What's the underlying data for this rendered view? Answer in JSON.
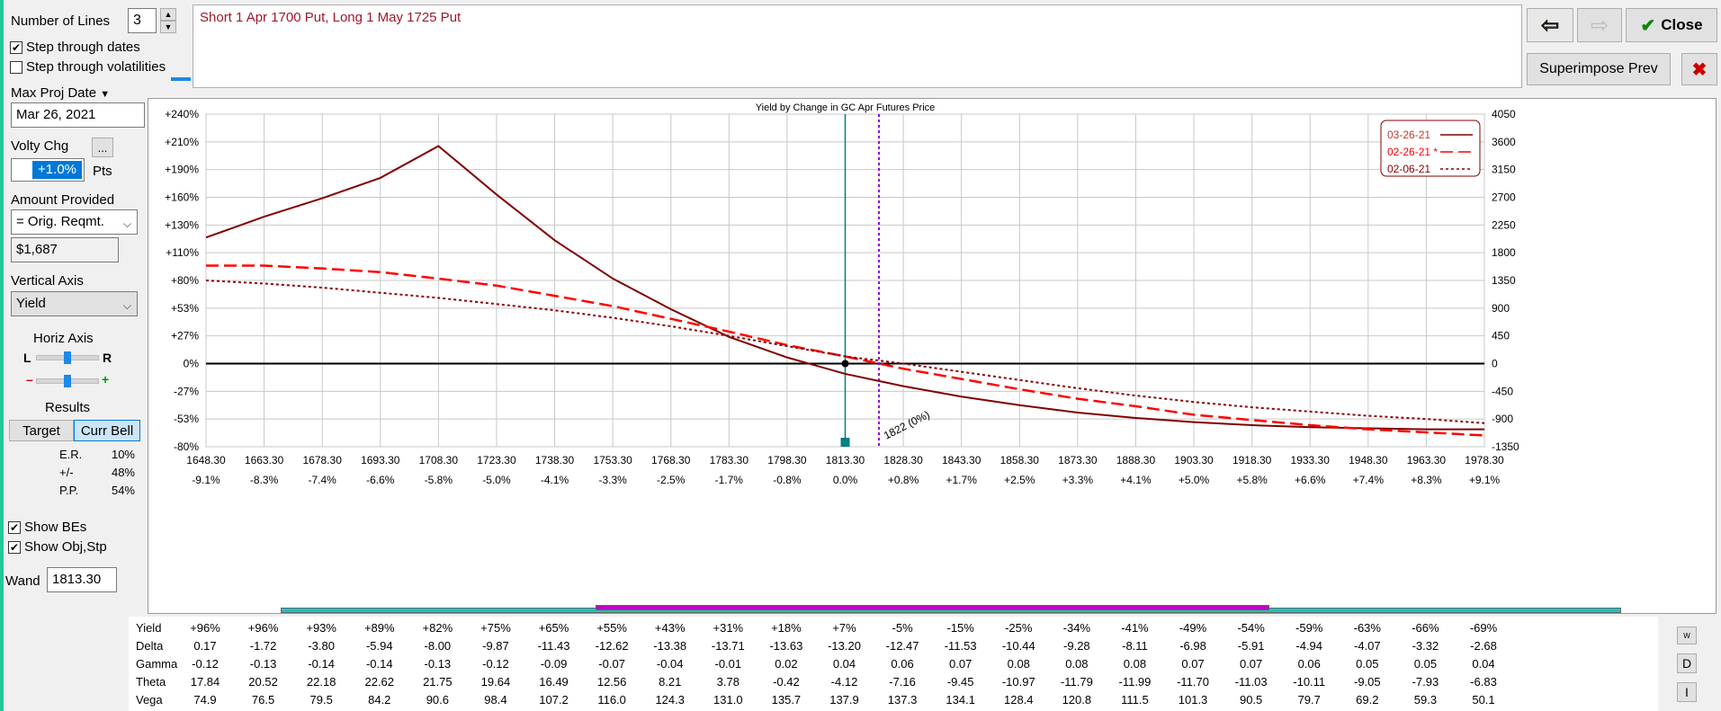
{
  "left_panel": {
    "number_of_lines_label": "Number of Lines",
    "number_of_lines_value": "3",
    "step_dates_label": "Step through dates",
    "step_dates_checked": true,
    "step_vols_label": "Step through volatilities",
    "step_vols_checked": false,
    "max_proj_date_label": "Max Proj Date",
    "max_proj_date_value": "Mar 26, 2021",
    "volty_chg_label": "Volty Chg",
    "volty_more": "...",
    "volty_value": "+1.0%",
    "volty_unit": "Pts",
    "amount_label": "Amount Provided",
    "amount_select": "= Orig. Reqmt.",
    "amount_value": "$1,687",
    "vertical_axis_label": "Vertical Axis",
    "vertical_axis_select": "Yield",
    "horiz_axis_label": "Horiz Axis",
    "horiz_l": "L",
    "horiz_r": "R",
    "horiz_minus": "–",
    "horiz_plus": "+",
    "results_label": "Results",
    "target_btn": "Target",
    "curr_bell_btn": "Curr Bell",
    "er_label": "E.R.",
    "er_value": "10%",
    "pm_label": "+/-",
    "pm_value": "48%",
    "pp_label": "P.P.",
    "pp_value": "54%",
    "show_bes_label": "Show BEs",
    "show_objstp_label": "Show Obj,Stp",
    "wand_label": "Wand",
    "wand_value": "1813.30"
  },
  "description": "Short 1 Apr 1700 Put, Long 1 May 1725 Put",
  "buttons": {
    "close": "Close",
    "superimpose": "Superimpose Prev",
    "delete": "✖",
    "back": "⇦",
    "forward": "⇨"
  },
  "colors": {
    "line1": "#800000",
    "line2": "#ff0000",
    "line3": "#8b0000",
    "teal": "#008080",
    "purple": "#9400d3",
    "accent": "#0078d7"
  },
  "chart_data": {
    "type": "line",
    "title": "Yield by Change in GC Apr Futures Price",
    "x": [
      1648.3,
      1663.3,
      1678.3,
      1693.3,
      1708.3,
      1723.3,
      1738.3,
      1753.3,
      1768.3,
      1783.3,
      1798.3,
      1813.3,
      1828.3,
      1843.3,
      1858.3,
      1873.3,
      1888.3,
      1903.3,
      1918.3,
      1933.3,
      1948.3,
      1963.3,
      1978.3
    ],
    "x_tick_labels": [
      "1648.30",
      "1663.30",
      "1678.30",
      "1693.30",
      "1708.30",
      "1723.30",
      "1738.30",
      "1753.30",
      "1768.30",
      "1783.30",
      "1798.30",
      "1813.30",
      "1828.30",
      "1843.30",
      "1858.30",
      "1873.30",
      "1888.30",
      "1903.30",
      "1918.30",
      "1933.30",
      "1948.30",
      "1963.30",
      "1978.30"
    ],
    "x_pct_labels": [
      "-9.1%",
      "-8.3%",
      "-7.4%",
      "-6.6%",
      "-5.8%",
      "-5.0%",
      "-4.1%",
      "-3.3%",
      "-2.5%",
      "-1.7%",
      "-0.8%",
      "0.0%",
      "+0.8%",
      "+1.7%",
      "+2.5%",
      "+3.3%",
      "+4.1%",
      "+5.0%",
      "+5.8%",
      "+6.6%",
      "+7.4%",
      "+8.3%",
      "+9.1%"
    ],
    "y_left_ticks": [
      "+240%",
      "+210%",
      "+190%",
      "+160%",
      "+130%",
      "+110%",
      "+80%",
      "+53%",
      "+27%",
      "0%",
      "-27%",
      "-53%",
      "-80%"
    ],
    "y_right_ticks": [
      "4050",
      "3600",
      "3150",
      "2700",
      "2250",
      "1800",
      "1350",
      "900",
      "450",
      "0",
      "-450",
      "-900",
      "-1350"
    ],
    "ylim": [
      -80,
      240
    ],
    "series": [
      {
        "name": "03-26-21",
        "style": "solid",
        "values": [
          121,
          139,
          159,
          181,
          207,
          163,
          119,
          82,
          52,
          26,
          6,
          -10,
          -22,
          -32,
          -40,
          -47,
          -52,
          -56,
          -59,
          -61,
          -62,
          -63,
          -63
        ]
      },
      {
        "name": "02-26-21 *",
        "style": "dashed",
        "values": [
          96,
          96,
          93,
          89,
          82,
          75,
          65,
          55,
          43,
          31,
          18,
          7,
          -5,
          -15,
          -25,
          -34,
          -41,
          -49,
          -54,
          -59,
          -63,
          -66,
          -69
        ]
      },
      {
        "name": "02-06-21",
        "style": "dotted",
        "values": [
          80,
          77,
          73,
          68,
          63,
          57,
          51,
          44,
          36,
          27,
          17,
          7,
          0,
          -8,
          -16,
          -24,
          -31,
          -37,
          -42,
          -46,
          -50,
          -53,
          -57
        ]
      }
    ],
    "current_price": 1813.3,
    "breakeven": 1822,
    "breakeven_label": "1822 (0%)",
    "legend_position": "top-right"
  },
  "greeks": {
    "row_names": [
      "Yield",
      "Delta",
      "Gamma",
      "Theta",
      "Vega"
    ],
    "yield": [
      "+96%",
      "+96%",
      "+93%",
      "+89%",
      "+82%",
      "+75%",
      "+65%",
      "+55%",
      "+43%",
      "+31%",
      "+18%",
      "+7%",
      "-5%",
      "-15%",
      "-25%",
      "-34%",
      "-41%",
      "-49%",
      "-54%",
      "-59%",
      "-63%",
      "-66%",
      "-69%"
    ],
    "delta": [
      "0.17",
      "-1.72",
      "-3.80",
      "-5.94",
      "-8.00",
      "-9.87",
      "-11.43",
      "-12.62",
      "-13.38",
      "-13.71",
      "-13.63",
      "-13.20",
      "-12.47",
      "-11.53",
      "-10.44",
      "-9.28",
      "-8.11",
      "-6.98",
      "-5.91",
      "-4.94",
      "-4.07",
      "-3.32",
      "-2.68"
    ],
    "gamma": [
      "-0.12",
      "-0.13",
      "-0.14",
      "-0.14",
      "-0.13",
      "-0.12",
      "-0.09",
      "-0.07",
      "-0.04",
      "-0.01",
      "0.02",
      "0.04",
      "0.06",
      "0.07",
      "0.08",
      "0.08",
      "0.08",
      "0.07",
      "0.07",
      "0.06",
      "0.05",
      "0.05",
      "0.04"
    ],
    "theta": [
      "17.84",
      "20.52",
      "22.18",
      "22.62",
      "21.75",
      "19.64",
      "16.49",
      "12.56",
      "8.21",
      "3.78",
      "-0.42",
      "-4.12",
      "-7.16",
      "-9.45",
      "-10.97",
      "-11.79",
      "-11.99",
      "-11.70",
      "-11.03",
      "-10.11",
      "-9.05",
      "-7.93",
      "-6.83"
    ],
    "vega": [
      "74.9",
      "76.5",
      "79.5",
      "84.2",
      "90.6",
      "98.4",
      "107.2",
      "116.0",
      "124.3",
      "131.0",
      "135.7",
      "137.9",
      "137.3",
      "134.1",
      "128.4",
      "120.8",
      "111.5",
      "101.3",
      "90.5",
      "79.7",
      "69.2",
      "59.3",
      "50.1"
    ],
    "side_w": "W",
    "side_d": "D",
    "side_i": "I"
  }
}
